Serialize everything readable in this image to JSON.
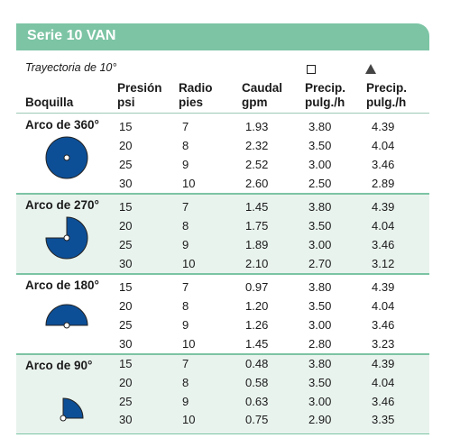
{
  "header": {
    "title": "Serie 10 VAN",
    "subtitle": "Trayectoria de 10°"
  },
  "columns": {
    "boquilla": "Boquilla",
    "presion": [
      "Presión",
      "psi"
    ],
    "radio": [
      "Radio",
      "pies"
    ],
    "caudal": [
      "Caudal",
      "gpm"
    ],
    "precip_square": [
      "Precip.",
      "pulg./h"
    ],
    "precip_triangle": [
      "Precip.",
      "pulg./h"
    ]
  },
  "icons": {
    "square_symbol": "square-spacing-icon",
    "triangle_symbol": "triangle-spacing-icon"
  },
  "colors": {
    "banner": "#7cc4a4",
    "shade": "#e9f3ee",
    "nozzle_fill": "#0d4f97"
  },
  "groups": [
    {
      "label": "Arco de 360°",
      "arc_degrees": 360,
      "rows": [
        {
          "presion": "15",
          "radio": "7",
          "caudal": "1.93",
          "precip_sq": "3.80",
          "precip_tri": "4.39"
        },
        {
          "presion": "20",
          "radio": "8",
          "caudal": "2.32",
          "precip_sq": "3.50",
          "precip_tri": "4.04"
        },
        {
          "presion": "25",
          "radio": "9",
          "caudal": "2.52",
          "precip_sq": "3.00",
          "precip_tri": "3.46"
        },
        {
          "presion": "30",
          "radio": "10",
          "caudal": "2.60",
          "precip_sq": "2.50",
          "precip_tri": "2.89"
        }
      ]
    },
    {
      "label": "Arco de 270°",
      "arc_degrees": 270,
      "rows": [
        {
          "presion": "15",
          "radio": "7",
          "caudal": "1.45",
          "precip_sq": "3.80",
          "precip_tri": "4.39"
        },
        {
          "presion": "20",
          "radio": "8",
          "caudal": "1.75",
          "precip_sq": "3.50",
          "precip_tri": "4.04"
        },
        {
          "presion": "25",
          "radio": "9",
          "caudal": "1.89",
          "precip_sq": "3.00",
          "precip_tri": "3.46"
        },
        {
          "presion": "30",
          "radio": "10",
          "caudal": "2.10",
          "precip_sq": "2.70",
          "precip_tri": "3.12"
        }
      ]
    },
    {
      "label": "Arco de 180°",
      "arc_degrees": 180,
      "rows": [
        {
          "presion": "15",
          "radio": "7",
          "caudal": "0.97",
          "precip_sq": "3.80",
          "precip_tri": "4.39"
        },
        {
          "presion": "20",
          "radio": "8",
          "caudal": "1.20",
          "precip_sq": "3.50",
          "precip_tri": "4.04"
        },
        {
          "presion": "25",
          "radio": "9",
          "caudal": "1.26",
          "precip_sq": "3.00",
          "precip_tri": "3.46"
        },
        {
          "presion": "30",
          "radio": "10",
          "caudal": "1.45",
          "precip_sq": "2.80",
          "precip_tri": "3.23"
        }
      ]
    },
    {
      "label": "Arco de 90°",
      "arc_degrees": 90,
      "rows": [
        {
          "presion": "15",
          "radio": "7",
          "caudal": "0.48",
          "precip_sq": "3.80",
          "precip_tri": "4.39"
        },
        {
          "presion": "20",
          "radio": "8",
          "caudal": "0.58",
          "precip_sq": "3.50",
          "precip_tri": "4.04"
        },
        {
          "presion": "25",
          "radio": "9",
          "caudal": "0.63",
          "precip_sq": "3.00",
          "precip_tri": "3.46"
        },
        {
          "presion": "30",
          "radio": "10",
          "caudal": "0.75",
          "precip_sq": "2.90",
          "precip_tri": "3.35"
        }
      ]
    }
  ]
}
